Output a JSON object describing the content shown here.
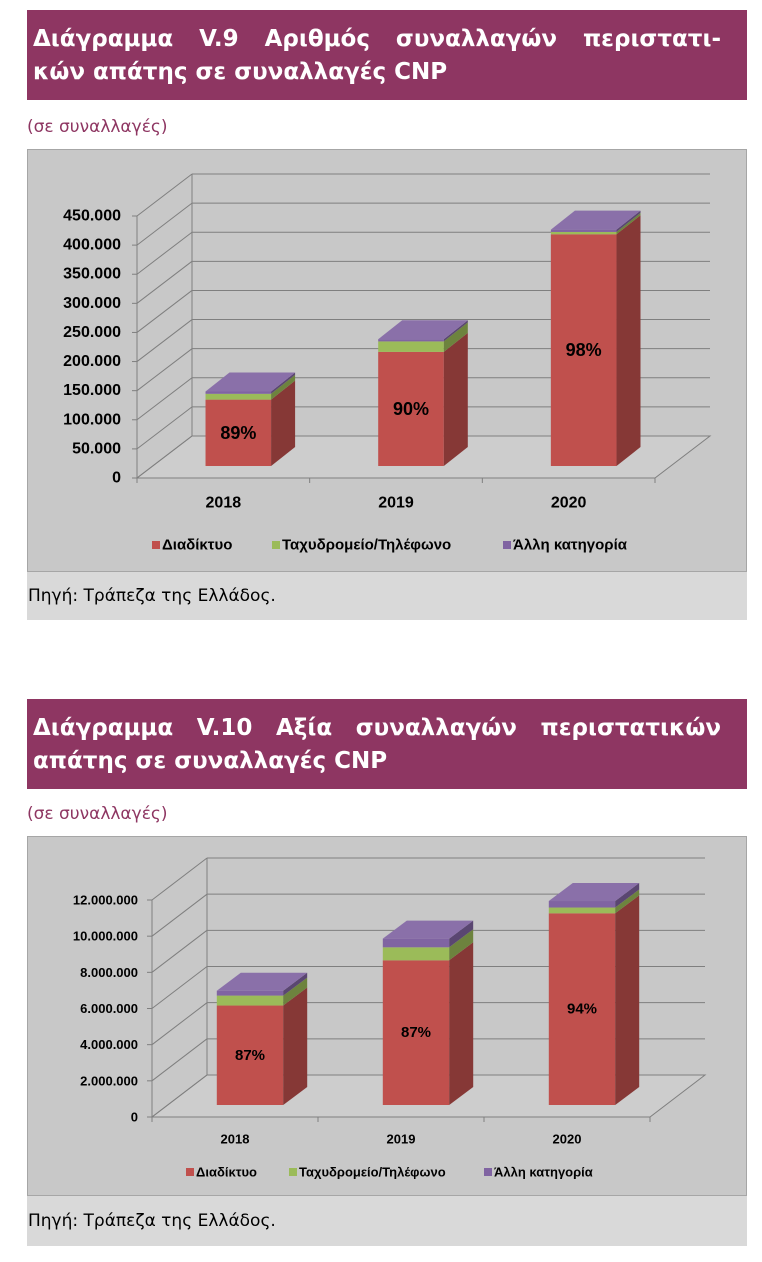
{
  "figures": [
    {
      "title_lines": [
        "Διάγραμμα V.9 Αριθμός συναλλαγών περιστατι-",
        "κών απάτης σε συναλλαγές CNP"
      ],
      "subtitle": "(σε συναλλαγές)",
      "source": "Πηγή: Τράπεζα της Ελλάδος."
    },
    {
      "title_lines": [
        "Διάγραμμα V.10 Αξία συναλλαγών περιστατικών",
        "απάτης σε συναλλαγές CNP"
      ],
      "subtitle": "(σε συναλλαγές)",
      "source": "Πηγή: Τράπεζα της Ελλάδος."
    }
  ],
  "chart_data": [
    {
      "type": "bar",
      "stacked": true,
      "style": "3d",
      "categories": [
        "2018",
        "2019",
        "2020"
      ],
      "series": [
        {
          "name": "Διαδίκτυο",
          "values": [
            114000,
            196000,
            398000
          ],
          "color": "#c0504d"
        },
        {
          "name": "Ταχυδρομείο/Τηλέφωνο",
          "values": [
            10000,
            18000,
            4000
          ],
          "color": "#9bbb59"
        },
        {
          "name": "Άλλη κατηγορία",
          "values": [
            4000,
            3800,
            4000
          ],
          "color": "#8064a2"
        }
      ],
      "data_labels": [
        "89%",
        "90%",
        "98%"
      ],
      "ylim": [
        0,
        450000
      ],
      "yticks": [
        0,
        50000,
        100000,
        150000,
        200000,
        250000,
        300000,
        350000,
        400000,
        450000
      ],
      "ytick_labels": [
        "0",
        "50.000",
        "100.000",
        "150.000",
        "200.000",
        "250.000",
        "300.000",
        "350.000",
        "400.000",
        "450.000"
      ],
      "legend": "bottom",
      "grid": true
    },
    {
      "type": "bar",
      "stacked": true,
      "style": "3d",
      "categories": [
        "2018",
        "2019",
        "2020"
      ],
      "series": [
        {
          "name": "Διαδίκτυο",
          "values": [
            5500000,
            8000000,
            10600000
          ],
          "color": "#c0504d"
        },
        {
          "name": "Ταχυδρομείο/Τηλέφωνο",
          "values": [
            550000,
            720000,
            320000
          ],
          "color": "#9bbb59"
        },
        {
          "name": "Άλλη κατηγορία",
          "values": [
            270000,
            480000,
            360000
          ],
          "color": "#8064a2"
        }
      ],
      "data_labels": [
        "87%",
        "87%",
        "94%"
      ],
      "ylim": [
        0,
        12000000
      ],
      "yticks": [
        0,
        2000000,
        4000000,
        6000000,
        8000000,
        10000000,
        12000000
      ],
      "ytick_labels": [
        "0",
        "2.000.000",
        "4.000.000",
        "6.000.000",
        "8.000.000",
        "10.000.000",
        "12.000.000"
      ],
      "legend": "bottom",
      "grid": true
    }
  ]
}
